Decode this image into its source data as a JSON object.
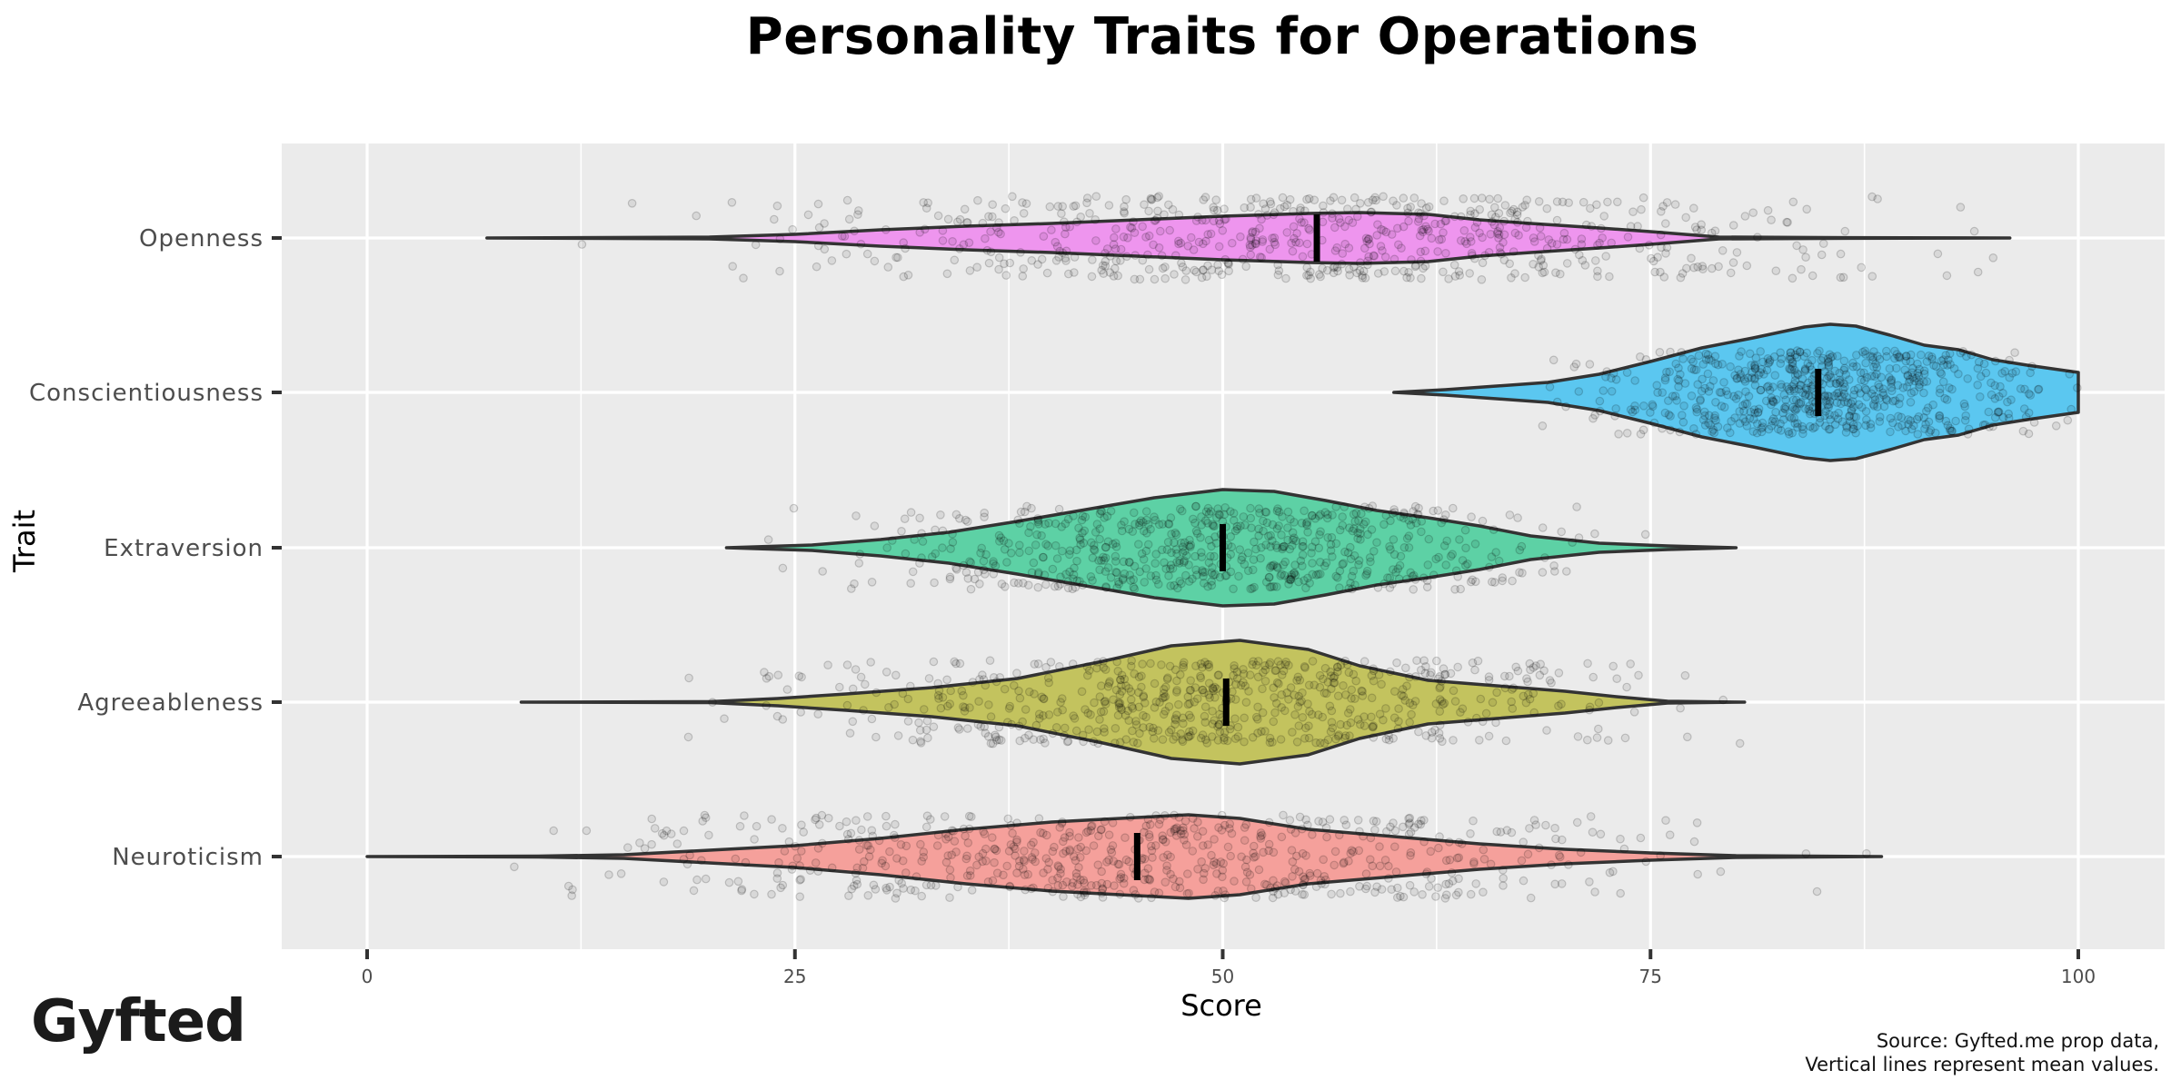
{
  "title": "Personality Traits for Operations",
  "logo": "Gyfted",
  "caption": {
    "line1": "Source: Gyfted.me prop data,",
    "line2": "Vertical lines represent mean values."
  },
  "colors": {
    "panel_bg": "#EBEBEB",
    "grid": "#FFFFFF",
    "outline": "#333333",
    "mean_line": "#000000",
    "jitter_point": "#000000"
  },
  "chart_data": {
    "type": "violin",
    "title": "Personality Traits for Operations",
    "xlabel": "Score",
    "ylabel": "Trait",
    "xlim": [
      -4.9,
      102.5
    ],
    "x_ticks": [
      0,
      25,
      50,
      75,
      100
    ],
    "x_tick_labels": [
      "0",
      "25",
      "50",
      "75",
      "100"
    ],
    "grid": true,
    "legend": "none",
    "annotations": [
      "Vertical lines represent mean values.",
      "Source: Gyfted.me prop data"
    ],
    "categories": [
      "Openness",
      "Conscientiousness",
      "Extraversion",
      "Agreeableness",
      "Neuroticism"
    ],
    "series": [
      {
        "name": "Openness",
        "color": "#E76BF3",
        "fill": "#EE95EE",
        "min": 7,
        "max": 96,
        "mean": 55.5,
        "density_profile": [
          [
            7,
            0
          ],
          [
            20,
            1
          ],
          [
            25,
            4
          ],
          [
            30,
            9
          ],
          [
            35,
            13
          ],
          [
            40,
            16
          ],
          [
            45,
            20
          ],
          [
            50,
            24
          ],
          [
            55,
            27
          ],
          [
            58,
            28
          ],
          [
            62,
            26
          ],
          [
            65,
            20
          ],
          [
            68,
            16
          ],
          [
            72,
            11
          ],
          [
            75,
            7
          ],
          [
            79,
            1
          ],
          [
            85,
            0.5
          ],
          [
            96,
            0
          ]
        ]
      },
      {
        "name": "Conscientiousness",
        "color": "#00B0F6",
        "fill": "#5BC7F0",
        "min": 60,
        "max": 100,
        "mean": 84.8,
        "density_profile": [
          [
            60,
            0
          ],
          [
            63,
            3
          ],
          [
            66,
            7
          ],
          [
            69,
            11
          ],
          [
            72,
            20
          ],
          [
            75,
            34
          ],
          [
            78,
            49
          ],
          [
            81,
            60
          ],
          [
            84,
            72
          ],
          [
            85.5,
            75
          ],
          [
            87,
            73
          ],
          [
            89,
            63
          ],
          [
            91,
            52
          ],
          [
            93,
            47
          ],
          [
            95,
            36
          ],
          [
            97,
            30
          ],
          [
            100,
            22
          ]
        ]
      },
      {
        "name": "Extraversion",
        "color": "#00BF7D",
        "fill": "#5DD1A5",
        "min": 21,
        "max": 80,
        "mean": 50,
        "density_profile": [
          [
            21,
            0
          ],
          [
            26,
            3
          ],
          [
            30,
            9
          ],
          [
            34,
            17
          ],
          [
            38,
            29
          ],
          [
            42,
            42
          ],
          [
            46,
            55
          ],
          [
            50,
            64
          ],
          [
            53,
            62
          ],
          [
            56,
            52
          ],
          [
            59,
            41
          ],
          [
            62,
            33
          ],
          [
            65,
            24
          ],
          [
            68,
            13
          ],
          [
            72,
            5
          ],
          [
            76,
            2
          ],
          [
            80,
            0
          ]
        ]
      },
      {
        "name": "Agreeableness",
        "color": "#A3A500",
        "fill": "#C3C35E",
        "min": 9,
        "max": 80.5,
        "mean": 50.2,
        "density_profile": [
          [
            9,
            0
          ],
          [
            20,
            0.5
          ],
          [
            24,
            4
          ],
          [
            28,
            9
          ],
          [
            33,
            16
          ],
          [
            38,
            26
          ],
          [
            43,
            45
          ],
          [
            47,
            62
          ],
          [
            51,
            68
          ],
          [
            55,
            58
          ],
          [
            58,
            40
          ],
          [
            62,
            24
          ],
          [
            66,
            18
          ],
          [
            70,
            12
          ],
          [
            73,
            6
          ],
          [
            76,
            1
          ],
          [
            80.5,
            0
          ]
        ]
      },
      {
        "name": "Neuroticism",
        "color": "#F8766D",
        "fill": "#F5A09B",
        "min": 0,
        "max": 88.5,
        "mean": 45,
        "density_profile": [
          [
            0,
            0
          ],
          [
            10,
            0.5
          ],
          [
            15,
            2
          ],
          [
            20,
            7
          ],
          [
            25,
            12
          ],
          [
            30,
            20
          ],
          [
            35,
            30
          ],
          [
            40,
            38
          ],
          [
            45,
            43
          ],
          [
            48,
            46
          ],
          [
            51,
            42
          ],
          [
            55,
            30
          ],
          [
            60,
            22
          ],
          [
            65,
            14
          ],
          [
            70,
            8
          ],
          [
            75,
            4
          ],
          [
            80,
            1
          ],
          [
            88.5,
            0
          ]
        ]
      }
    ]
  }
}
